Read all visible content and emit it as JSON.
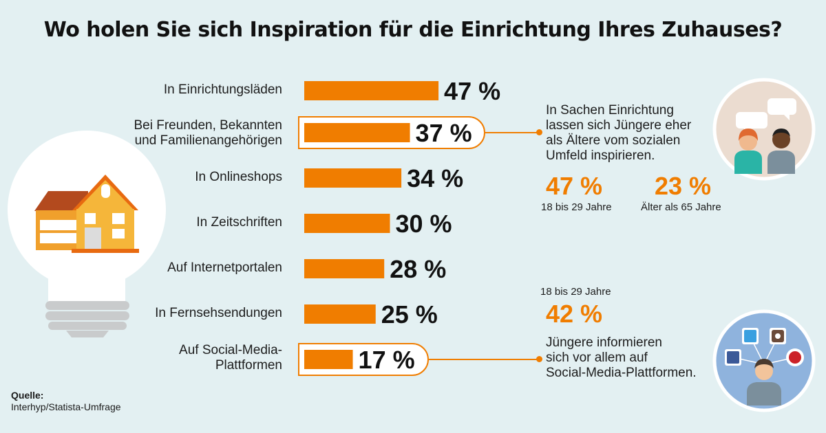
{
  "title": "Wo holen Sie sich Inspiration für die Einrichtung Ihres Zuhauses?",
  "chart_data": {
    "type": "bar",
    "orientation": "horizontal",
    "unit": "%",
    "categories": [
      "In Einrichtungsläden",
      "Bei Freunden, Bekannten und Familienangehörigen",
      "In Onlineshops",
      "In Zeitschriften",
      "Auf Internetportalen",
      "In Fernsehsendungen",
      "Auf Social-Media-Plattformen"
    ],
    "category_lines": [
      [
        "In Einrichtungsläden"
      ],
      [
        "Bei Freunden, Bekannten",
        "und Familienangehörigen"
      ],
      [
        "In Onlineshops"
      ],
      [
        "In Zeitschriften"
      ],
      [
        "Auf Internetportalen"
      ],
      [
        "In Fernsehsendungen"
      ],
      [
        "Auf Social-Media-",
        "Plattformen"
      ]
    ],
    "values": [
      47,
      37,
      34,
      30,
      28,
      25,
      17
    ],
    "value_labels": [
      "47 %",
      "37 %",
      "34 %",
      "30 %",
      "28 %",
      "25 %",
      "17 %"
    ],
    "highlighted": [
      false,
      true,
      false,
      false,
      false,
      false,
      true
    ],
    "bar_color": "#f07d00"
  },
  "callout_social": {
    "text_lines": [
      "In Sachen Einrichtung",
      "lassen sich Jüngere eher",
      "als Ältere vom sozialen",
      "Umfeld inspirieren."
    ],
    "young_value": "47 %",
    "young_label": "18 bis 29 Jahre",
    "old_value": "23 %",
    "old_label": "Älter als 65 Jahre"
  },
  "callout_media": {
    "age_label": "18 bis 29 Jahre",
    "value": "42 %",
    "text_lines": [
      "Jüngere informieren",
      "sich vor allem auf",
      "Social-Media-Plattformen."
    ]
  },
  "source": {
    "label": "Quelle:",
    "text": "Interhyp/Statista-Umfrage"
  },
  "colors": {
    "accent": "#f07d00",
    "background": "#e3f0f2"
  },
  "icons": [
    "lightbulb-house-icon",
    "people-chat-icon",
    "social-media-user-icon",
    "twitter-icon",
    "instagram-icon",
    "facebook-icon",
    "pinterest-icon"
  ]
}
